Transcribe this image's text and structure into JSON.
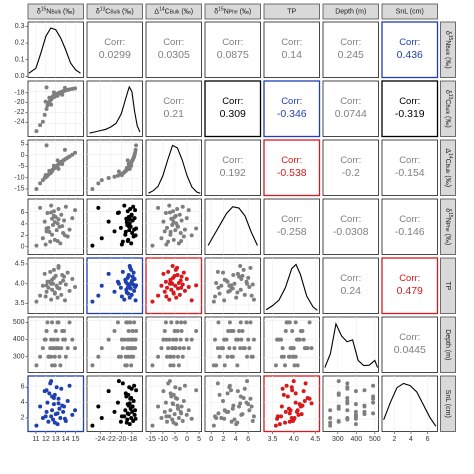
{
  "chart_data": {
    "type": "scatter",
    "variables": [
      {
        "id": "d15N_bulk",
        "label": "δ15NBulk (‰)",
        "base": "δ",
        "sup": "15",
        "main": "N",
        "sub": "Bulk",
        "tail": " (‰)",
        "range": [
          10.2,
          15.8
        ],
        "ticks": [
          11,
          12,
          13,
          14,
          15
        ]
      },
      {
        "id": "d13C_bulk",
        "label": "δ13CBulk (‰)",
        "base": "δ",
        "sup": "13",
        "main": "C",
        "sub": "Bulk",
        "tail": " (‰)",
        "range": [
          -26.5,
          -16
        ],
        "ticks": [
          -24,
          -22,
          -20,
          -18
        ],
        "tick_labels": [
          "-24",
          "-22",
          "-20",
          "-18"
        ]
      },
      {
        "id": "D14C_bulk",
        "label": "Δ14CBulk (‰)",
        "base": "Δ",
        "sup": "14",
        "main": "C",
        "sub": "Bulk",
        "tail": " (‰)",
        "range": [
          -17,
          6
        ],
        "ticks": [
          -15,
          -10,
          -5,
          0,
          5
        ]
      },
      {
        "id": "d15N_phe",
        "label": "δ15NPhe (‰)",
        "base": "δ",
        "sup": "15",
        "main": "N",
        "sub": "Phe",
        "tail": " (‰)",
        "range": [
          -1,
          8
        ],
        "ticks": [
          0,
          2,
          4,
          6
        ]
      },
      {
        "id": "TP",
        "label": "TP",
        "base": "",
        "sup": "",
        "main": "TP",
        "sub": "",
        "tail": "",
        "range": [
          3.3,
          4.6
        ],
        "ticks": [
          3.5,
          4.0,
          4.5
        ],
        "tick_labels": [
          "3.5",
          "4.0",
          "4.5"
        ]
      },
      {
        "id": "depth",
        "label": "Depth (m)",
        "base": "",
        "sup": "",
        "main": "Depth (m)",
        "sub": "",
        "tail": "",
        "range": [
          220,
          520
        ],
        "ticks": [
          300,
          400,
          500
        ]
      },
      {
        "id": "SnL",
        "label": "SnL (cm)",
        "base": "",
        "sup": "",
        "main": "SnL (cm)",
        "sub": "",
        "tail": "",
        "range": [
          0.5,
          7.2
        ],
        "ticks": [
          2,
          4,
          6
        ]
      }
    ],
    "correlations": [
      {
        "row": 0,
        "col": 1,
        "label": "Corr:",
        "value": "0.0299",
        "color": "#808080",
        "border": "#1a1a1a"
      },
      {
        "row": 0,
        "col": 2,
        "label": "Corr:",
        "value": "0.0305",
        "color": "#808080",
        "border": "#1a1a1a"
      },
      {
        "row": 0,
        "col": 3,
        "label": "Corr:",
        "value": "0.0875",
        "color": "#808080",
        "border": "#1a1a1a"
      },
      {
        "row": 0,
        "col": 4,
        "label": "Corr:",
        "value": "0.14",
        "color": "#808080",
        "border": "#1a1a1a"
      },
      {
        "row": 0,
        "col": 5,
        "label": "Corr:",
        "value": "0.245",
        "color": "#808080",
        "border": "#1a1a1a"
      },
      {
        "row": 0,
        "col": 6,
        "label": "Corr:",
        "value": "0.436",
        "color": "#1f3fb0",
        "border": "#1f3fb0"
      },
      {
        "row": 1,
        "col": 2,
        "label": "Corr:",
        "value": "0.21",
        "color": "#808080",
        "border": "#1a1a1a"
      },
      {
        "row": 1,
        "col": 3,
        "label": "Corr:",
        "value": "0.309",
        "color": "#000000",
        "border": "#000000"
      },
      {
        "row": 1,
        "col": 4,
        "label": "Corr:",
        "value": "-0.346",
        "color": "#1f3fb0",
        "border": "#1f3fb0"
      },
      {
        "row": 1,
        "col": 5,
        "label": "Corr:",
        "value": "0.0744",
        "color": "#808080",
        "border": "#1a1a1a"
      },
      {
        "row": 1,
        "col": 6,
        "label": "Corr:",
        "value": "-0.319",
        "color": "#000000",
        "border": "#000000"
      },
      {
        "row": 2,
        "col": 3,
        "label": "Corr:",
        "value": "0.192",
        "color": "#808080",
        "border": "#1a1a1a"
      },
      {
        "row": 2,
        "col": 4,
        "label": "Corr:",
        "value": "-0.538",
        "color": "#d7191c",
        "border": "#d7191c"
      },
      {
        "row": 2,
        "col": 5,
        "label": "Corr:",
        "value": "-0.2",
        "color": "#808080",
        "border": "#1a1a1a"
      },
      {
        "row": 2,
        "col": 6,
        "label": "Corr:",
        "value": "-0.154",
        "color": "#808080",
        "border": "#1a1a1a"
      },
      {
        "row": 3,
        "col": 4,
        "label": "Corr:",
        "value": "-0.258",
        "color": "#808080",
        "border": "#1a1a1a"
      },
      {
        "row": 3,
        "col": 5,
        "label": "Corr:",
        "value": "-0.0308",
        "color": "#808080",
        "border": "#1a1a1a"
      },
      {
        "row": 3,
        "col": 6,
        "label": "Corr:",
        "value": "-0.146",
        "color": "#808080",
        "border": "#1a1a1a"
      },
      {
        "row": 4,
        "col": 5,
        "label": "Corr:",
        "value": "0.24",
        "color": "#808080",
        "border": "#1a1a1a"
      },
      {
        "row": 4,
        "col": 6,
        "label": "Corr:",
        "value": "0.479",
        "color": "#d7191c",
        "border": "#d7191c"
      },
      {
        "row": 5,
        "col": 6,
        "label": "Corr:",
        "value": "0.0445",
        "color": "#808080",
        "border": "#1a1a1a"
      }
    ],
    "lower_panel_colors": [
      {
        "row": 1,
        "col": 0,
        "point": "#7f7f7f",
        "border": "#1a1a1a"
      },
      {
        "row": 2,
        "col": 0,
        "point": "#7f7f7f",
        "border": "#1a1a1a"
      },
      {
        "row": 2,
        "col": 1,
        "point": "#7f7f7f",
        "border": "#1a1a1a"
      },
      {
        "row": 3,
        "col": 0,
        "point": "#7f7f7f",
        "border": "#1a1a1a"
      },
      {
        "row": 3,
        "col": 1,
        "point": "#000000",
        "border": "#1a1a1a"
      },
      {
        "row": 3,
        "col": 2,
        "point": "#7f7f7f",
        "border": "#1a1a1a"
      },
      {
        "row": 4,
        "col": 0,
        "point": "#7f7f7f",
        "border": "#1a1a1a"
      },
      {
        "row": 4,
        "col": 1,
        "point": "#1f3fb0",
        "border": "#1f3fb0"
      },
      {
        "row": 4,
        "col": 2,
        "point": "#d7191c",
        "border": "#d7191c"
      },
      {
        "row": 4,
        "col": 3,
        "point": "#7f7f7f",
        "border": "#1a1a1a"
      },
      {
        "row": 5,
        "col": 0,
        "point": "#7f7f7f",
        "border": "#1a1a1a"
      },
      {
        "row": 5,
        "col": 1,
        "point": "#7f7f7f",
        "border": "#1a1a1a"
      },
      {
        "row": 5,
        "col": 2,
        "point": "#7f7f7f",
        "border": "#1a1a1a"
      },
      {
        "row": 5,
        "col": 3,
        "point": "#7f7f7f",
        "border": "#1a1a1a"
      },
      {
        "row": 5,
        "col": 4,
        "point": "#7f7f7f",
        "border": "#1a1a1a"
      },
      {
        "row": 6,
        "col": 0,
        "point": "#1f3fb0",
        "border": "#1f3fb0"
      },
      {
        "row": 6,
        "col": 1,
        "point": "#000000",
        "border": "#1a1a1a"
      },
      {
        "row": 6,
        "col": 2,
        "point": "#7f7f7f",
        "border": "#1a1a1a"
      },
      {
        "row": 6,
        "col": 3,
        "point": "#7f7f7f",
        "border": "#1a1a1a"
      },
      {
        "row": 6,
        "col": 4,
        "point": "#d7191c",
        "border": "#d7191c"
      },
      {
        "row": 6,
        "col": 5,
        "point": "#7f7f7f",
        "border": "#1a1a1a"
      }
    ],
    "density_curves": [
      {
        "var": 0,
        "x": [
          10.3,
          11,
          11.5,
          12,
          12.5,
          13,
          13.5,
          14,
          14.5,
          15,
          15.5
        ],
        "y": [
          0.02,
          0.05,
          0.14,
          0.24,
          0.29,
          0.28,
          0.23,
          0.16,
          0.08,
          0.04,
          0.02
        ],
        "ylim": [
          0,
          0.32
        ],
        "yticks": [
          0.0,
          0.1,
          0.2,
          0.3
        ],
        "ytick_labels": [
          "0.0",
          "0.1",
          "0.2",
          "0.3"
        ]
      },
      {
        "var": 1,
        "x": [
          -26,
          -25,
          -24,
          -23,
          -22,
          -21,
          -20,
          -19,
          -18.5,
          -18,
          -17.5,
          -17,
          -16.5
        ],
        "y": [
          0.02,
          0.03,
          0.04,
          0.05,
          0.07,
          0.1,
          0.18,
          0.33,
          0.4,
          0.36,
          0.2,
          0.08,
          0.03
        ],
        "ylim": [
          0,
          0.44
        ]
      },
      {
        "var": 2,
        "x": [
          -16,
          -14,
          -12,
          -10,
          -8,
          -6,
          -4,
          -2,
          0,
          2,
          4,
          5.5
        ],
        "y": [
          0.002,
          0.006,
          0.013,
          0.03,
          0.055,
          0.078,
          0.074,
          0.055,
          0.03,
          0.012,
          0.004,
          0.002
        ],
        "ylim": [
          0,
          0.085
        ]
      },
      {
        "var": 3,
        "x": [
          -0.5,
          0.5,
          1.5,
          2.5,
          3.5,
          4.5,
          5.5,
          6.5,
          7.5
        ],
        "y": [
          0.03,
          0.07,
          0.11,
          0.15,
          0.175,
          0.17,
          0.14,
          0.08,
          0.03
        ],
        "ylim": [
          0,
          0.2
        ]
      },
      {
        "var": 4,
        "x": [
          3.35,
          3.5,
          3.65,
          3.8,
          3.95,
          4.05,
          4.15,
          4.3,
          4.45,
          4.55
        ],
        "y": [
          0.1,
          0.25,
          0.45,
          0.9,
          1.6,
          1.75,
          1.4,
          0.6,
          0.2,
          0.08
        ],
        "ylim": [
          0,
          1.95
        ]
      },
      {
        "var": 5,
        "x": [
          230,
          260,
          290,
          320,
          350,
          380,
          410,
          440,
          470,
          500,
          515
        ],
        "y": [
          0.001,
          0.0045,
          0.012,
          0.009,
          0.0075,
          0.008,
          0.0028,
          0.0015,
          0.0016,
          0.0028,
          0.001
        ],
        "ylim": [
          0,
          0.0135
        ]
      },
      {
        "var": 6,
        "x": [
          0.7,
          1.5,
          2.3,
          3.1,
          3.9,
          4.7,
          5.5,
          6.3,
          7.0
        ],
        "y": [
          0.05,
          0.13,
          0.2,
          0.22,
          0.21,
          0.18,
          0.12,
          0.06,
          0.02
        ],
        "ylim": [
          0,
          0.25
        ]
      }
    ],
    "obs": {
      "d15N_bulk": [
        10.9,
        11.3,
        11.6,
        11.8,
        12.0,
        12.1,
        12.2,
        12.4,
        12.5,
        12.6,
        12.6,
        12.7,
        12.8,
        12.9,
        13.0,
        13.1,
        13.2,
        13.3,
        13.4,
        13.5,
        13.6,
        13.8,
        13.9,
        14.1,
        14.3,
        14.5,
        14.8,
        15.1,
        12.3,
        12.9,
        13.7,
        11.9,
        12.8,
        13.2,
        12.5,
        14.0,
        13.3,
        12.0
      ],
      "d13C_bulk": [
        -25.8,
        -24.6,
        -23.9,
        -22.5,
        -21.3,
        -20.6,
        -20.0,
        -19.6,
        -19.3,
        -19.1,
        -18.9,
        -18.7,
        -18.6,
        -18.5,
        -18.4,
        -18.3,
        -18.2,
        -18.1,
        -18.0,
        -17.9,
        -17.8,
        -17.7,
        -17.6,
        -17.5,
        -17.4,
        -17.3,
        -17.2,
        -17.1,
        -19.0,
        -18.8,
        -18.4,
        -19.8,
        -17.9,
        -18.6,
        -20.4,
        -17.0,
        -18.2,
        -16.9
      ],
      "D14C_bulk": [
        -15.0,
        -12.5,
        -11.0,
        -10.1,
        -9.5,
        -9.0,
        -8.5,
        -8.0,
        -7.5,
        -7.0,
        -6.6,
        -6.2,
        -5.8,
        -5.5,
        -5.1,
        -4.8,
        -4.4,
        -4.0,
        -3.6,
        -3.2,
        -2.8,
        -2.4,
        -2.0,
        -1.5,
        -1.0,
        -0.5,
        0.3,
        1.2,
        -6.9,
        -5.6,
        -3.8,
        -8.8,
        -4.6,
        -2.2,
        -7.2,
        2.5,
        -6.0,
        4.5
      ],
      "d15N_phe": [
        0.2,
        6.8,
        1.5,
        4.4,
        2.7,
        5.9,
        3.3,
        0.9,
        7.2,
        2.1,
        4.9,
        3.8,
        6.2,
        1.2,
        5.2,
        2.9,
        4.1,
        6.6,
        3.5,
        0.6,
        5.6,
        2.4,
        4.6,
        7.0,
        1.8,
        3.0,
        5.0,
        6.4,
        2.6,
        4.3,
        3.6,
        0.4,
        5.4,
        1.0,
        6.0,
        2.0,
        4.8,
        3.2
      ],
      "TP": [
        3.55,
        3.7,
        3.95,
        4.25,
        3.8,
        4.05,
        3.9,
        4.3,
        3.6,
        4.1,
        3.85,
        4.0,
        4.15,
        3.75,
        4.2,
        3.95,
        3.65,
        4.4,
        3.88,
        4.02,
        3.72,
        4.08,
        4.18,
        3.98,
        4.28,
        3.82,
        4.12,
        3.92,
        4.05,
        3.78,
        4.22,
        3.68,
        4.35,
        3.9,
        4.0,
        3.58,
        4.45,
        3.96
      ],
      "depth": [
        250,
        300,
        350,
        400,
        450,
        500,
        300,
        350,
        400,
        250,
        500,
        350,
        400,
        300,
        450,
        350,
        400,
        500,
        300,
        250,
        350,
        400,
        450,
        300,
        350,
        500,
        400,
        350,
        300,
        250,
        450,
        400,
        350,
        500,
        300,
        400,
        350,
        450
      ],
      "SnL": [
        1.0,
        3.5,
        2.0,
        5.5,
        2.8,
        4.0,
        1.5,
        6.5,
        2.2,
        3.0,
        4.8,
        1.8,
        3.8,
        5.0,
        2.5,
        6.0,
        1.2,
        4.5,
        3.2,
        2.0,
        5.8,
        2.8,
        3.5,
        1.6,
        4.2,
        6.2,
        2.4,
        3.0,
        5.2,
        1.4,
        3.6,
        2.2,
        4.6,
        2.6,
        6.8,
        1.9,
        3.9,
        5.6
      ]
    },
    "grid": true,
    "title": "",
    "xlabel": "",
    "ylabel": ""
  }
}
